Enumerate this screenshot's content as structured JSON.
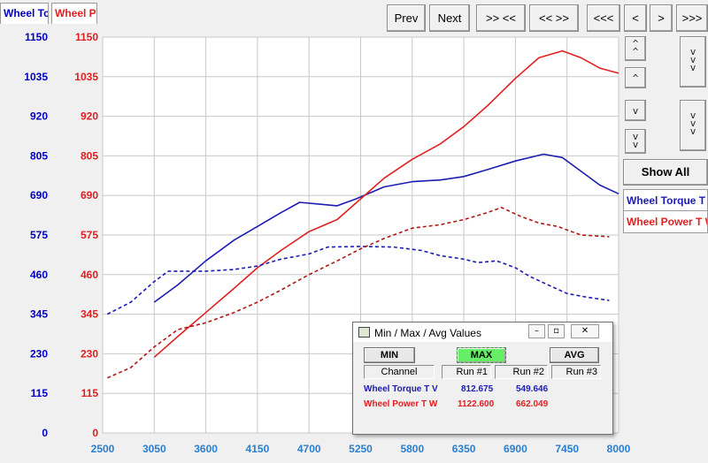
{
  "tabs": {
    "torque_label": "Wheel Tc",
    "power_label": "Wheel Po",
    "torque_color": "#0000c0",
    "power_color": "#e02020"
  },
  "toolbar": {
    "prev": "Prev",
    "next": "Next",
    "zoom_in": ">> <<",
    "zoom_out": "<< >>",
    "far_left": "<<<",
    "left": "<",
    "right": ">",
    "far_right": ">>>"
  },
  "side": {
    "show_all": "Show All",
    "legend_torque": "Wheel Torque T",
    "legend_power": "Wheel Power T W"
  },
  "dialog": {
    "title": "Min / Max / Avg Values",
    "min_label": "MIN",
    "max_label": "MAX",
    "avg_label": "AVG",
    "col_channel": "Channel",
    "col_run1": "Run #1",
    "col_run2": "Run #2",
    "col_run3": "Run #3",
    "rows": [
      {
        "channel": "Wheel Torque T V",
        "run1": "812.675",
        "run2": "549.646",
        "run3": ""
      },
      {
        "channel": "Wheel Power T W",
        "run1": "1122.600",
        "run2": "662.049",
        "run3": ""
      }
    ]
  },
  "chart_data": {
    "type": "line",
    "xlim": [
      2500,
      8000
    ],
    "ylim": [
      0,
      1150
    ],
    "x_ticks": [
      "2500",
      "3050",
      "3600",
      "4150",
      "4700",
      "5250",
      "5800",
      "6350",
      "6900",
      "7450",
      "8000"
    ],
    "y_ticks": [
      "0",
      "115",
      "230",
      "345",
      "460",
      "575",
      "690",
      "805",
      "920",
      "1035",
      "1150"
    ],
    "grid": true,
    "series": [
      {
        "name": "Wheel Torque T",
        "run": "Run #1",
        "color": "#1c1cb4",
        "dash": false,
        "points": [
          [
            3050,
            380
          ],
          [
            3300,
            430
          ],
          [
            3600,
            500
          ],
          [
            3900,
            560
          ],
          [
            4150,
            600
          ],
          [
            4400,
            640
          ],
          [
            4600,
            670
          ],
          [
            4800,
            665
          ],
          [
            5000,
            660
          ],
          [
            5200,
            680
          ],
          [
            5500,
            715
          ],
          [
            5800,
            730
          ],
          [
            6100,
            735
          ],
          [
            6350,
            745
          ],
          [
            6600,
            765
          ],
          [
            6900,
            790
          ],
          [
            7200,
            810
          ],
          [
            7400,
            800
          ],
          [
            7600,
            760
          ],
          [
            7800,
            720
          ],
          [
            8000,
            695
          ]
        ]
      },
      {
        "name": "Wheel Power T W",
        "run": "Run #1",
        "color": "#e02020",
        "dash": false,
        "points": [
          [
            3050,
            220
          ],
          [
            3300,
            280
          ],
          [
            3600,
            350
          ],
          [
            3900,
            420
          ],
          [
            4150,
            480
          ],
          [
            4400,
            530
          ],
          [
            4700,
            585
          ],
          [
            5000,
            620
          ],
          [
            5250,
            680
          ],
          [
            5500,
            740
          ],
          [
            5800,
            795
          ],
          [
            6100,
            840
          ],
          [
            6350,
            890
          ],
          [
            6600,
            950
          ],
          [
            6900,
            1030
          ],
          [
            7150,
            1090
          ],
          [
            7400,
            1110
          ],
          [
            7600,
            1090
          ],
          [
            7800,
            1060
          ],
          [
            8000,
            1045
          ]
        ]
      },
      {
        "name": "Wheel Torque T",
        "run": "Run #2",
        "color": "#1c1cb4",
        "dash": true,
        "points": [
          [
            2550,
            345
          ],
          [
            2800,
            380
          ],
          [
            3050,
            440
          ],
          [
            3200,
            470
          ],
          [
            3400,
            470
          ],
          [
            3600,
            470
          ],
          [
            3900,
            475
          ],
          [
            4150,
            485
          ],
          [
            4400,
            505
          ],
          [
            4700,
            520
          ],
          [
            4900,
            540
          ],
          [
            5250,
            542
          ],
          [
            5600,
            540
          ],
          [
            5900,
            530
          ],
          [
            6100,
            515
          ],
          [
            6350,
            505
          ],
          [
            6500,
            495
          ],
          [
            6700,
            500
          ],
          [
            6900,
            480
          ],
          [
            7050,
            455
          ],
          [
            7250,
            430
          ],
          [
            7450,
            405
          ],
          [
            7650,
            395
          ],
          [
            7900,
            385
          ]
        ]
      },
      {
        "name": "Wheel Power T W",
        "run": "Run #2",
        "color": "#b01818",
        "dash": true,
        "points": [
          [
            2550,
            160
          ],
          [
            2800,
            190
          ],
          [
            3050,
            250
          ],
          [
            3300,
            300
          ],
          [
            3600,
            320
          ],
          [
            3900,
            350
          ],
          [
            4150,
            380
          ],
          [
            4400,
            415
          ],
          [
            4700,
            460
          ],
          [
            5000,
            500
          ],
          [
            5250,
            535
          ],
          [
            5500,
            565
          ],
          [
            5800,
            595
          ],
          [
            6100,
            605
          ],
          [
            6350,
            620
          ],
          [
            6600,
            640
          ],
          [
            6750,
            655
          ],
          [
            6950,
            630
          ],
          [
            7150,
            610
          ],
          [
            7350,
            600
          ],
          [
            7600,
            575
          ],
          [
            7900,
            570
          ]
        ]
      }
    ]
  }
}
